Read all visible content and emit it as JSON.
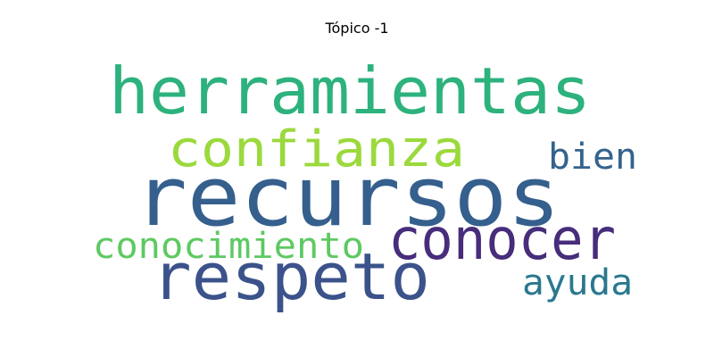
{
  "title": "Tópico -1",
  "words": [
    {
      "text": "recursos",
      "color": "#355f8d"
    },
    {
      "text": "herramientas",
      "color": "#2db27d"
    },
    {
      "text": "confianza",
      "color": "#9bd93c"
    },
    {
      "text": "respeto",
      "color": "#3b528b"
    },
    {
      "text": "conocer",
      "color": "#472d7b"
    },
    {
      "text": "bien",
      "color": "#33638d"
    },
    {
      "text": "conocimiento",
      "color": "#5ec962"
    },
    {
      "text": "ayuda",
      "color": "#2a788e"
    }
  ]
}
